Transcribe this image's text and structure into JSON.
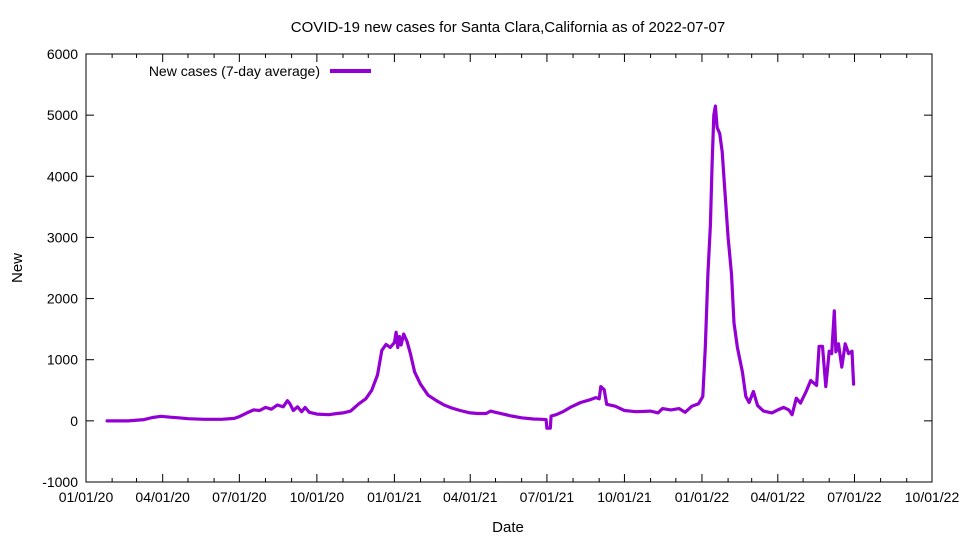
{
  "chart_data": {
    "type": "line",
    "title": "COVID-19 new cases for Santa Clara,California as of 2022-07-07",
    "xlabel": "Date",
    "ylabel": "New",
    "ylim": [
      -1000,
      6000
    ],
    "xlim": [
      "2020-01-01",
      "2022-10-01"
    ],
    "grid": false,
    "legend_position": "top-left",
    "x_ticks": [
      "01/01/20",
      "04/01/20",
      "07/01/20",
      "10/01/20",
      "01/01/21",
      "04/01/21",
      "07/01/21",
      "10/01/21",
      "01/01/22",
      "04/01/22",
      "07/01/22",
      "10/01/22"
    ],
    "y_ticks": [
      "-1000",
      "0",
      "1000",
      "2000",
      "3000",
      "4000",
      "5000",
      "6000"
    ],
    "series": [
      {
        "name": "New cases (7-day average)",
        "color": "#9400d3",
        "points": [
          [
            "2020-01-26",
            0
          ],
          [
            "2020-02-20",
            0
          ],
          [
            "2020-03-10",
            20
          ],
          [
            "2020-03-20",
            55
          ],
          [
            "2020-03-30",
            75
          ],
          [
            "2020-04-10",
            60
          ],
          [
            "2020-04-20",
            50
          ],
          [
            "2020-05-01",
            35
          ],
          [
            "2020-05-20",
            25
          ],
          [
            "2020-06-10",
            25
          ],
          [
            "2020-06-25",
            40
          ],
          [
            "2020-07-01",
            70
          ],
          [
            "2020-07-10",
            130
          ],
          [
            "2020-07-18",
            180
          ],
          [
            "2020-07-25",
            170
          ],
          [
            "2020-08-01",
            220
          ],
          [
            "2020-08-08",
            190
          ],
          [
            "2020-08-15",
            260
          ],
          [
            "2020-08-22",
            230
          ],
          [
            "2020-08-27",
            330
          ],
          [
            "2020-08-30",
            280
          ],
          [
            "2020-09-03",
            170
          ],
          [
            "2020-09-08",
            230
          ],
          [
            "2020-09-13",
            150
          ],
          [
            "2020-09-17",
            220
          ],
          [
            "2020-09-22",
            140
          ],
          [
            "2020-10-01",
            110
          ],
          [
            "2020-10-15",
            100
          ],
          [
            "2020-10-25",
            120
          ],
          [
            "2020-11-01",
            130
          ],
          [
            "2020-11-10",
            160
          ],
          [
            "2020-11-20",
            280
          ],
          [
            "2020-11-28",
            360
          ],
          [
            "2020-12-05",
            500
          ],
          [
            "2020-12-12",
            750
          ],
          [
            "2020-12-17",
            1150
          ],
          [
            "2020-12-22",
            1250
          ],
          [
            "2020-12-27",
            1200
          ],
          [
            "2021-01-01",
            1280
          ],
          [
            "2021-01-03",
            1450
          ],
          [
            "2021-01-05",
            1200
          ],
          [
            "2021-01-07",
            1380
          ],
          [
            "2021-01-09",
            1240
          ],
          [
            "2021-01-12",
            1420
          ],
          [
            "2021-01-16",
            1300
          ],
          [
            "2021-01-20",
            1100
          ],
          [
            "2021-01-25",
            800
          ],
          [
            "2021-02-01",
            600
          ],
          [
            "2021-02-10",
            420
          ],
          [
            "2021-02-20",
            330
          ],
          [
            "2021-03-01",
            260
          ],
          [
            "2021-03-10",
            210
          ],
          [
            "2021-03-20",
            170
          ],
          [
            "2021-04-01",
            130
          ],
          [
            "2021-04-10",
            120
          ],
          [
            "2021-04-20",
            120
          ],
          [
            "2021-04-25",
            160
          ],
          [
            "2021-05-01",
            140
          ],
          [
            "2021-05-10",
            110
          ],
          [
            "2021-05-20",
            80
          ],
          [
            "2021-06-01",
            50
          ],
          [
            "2021-06-15",
            30
          ],
          [
            "2021-06-25",
            25
          ],
          [
            "2021-06-30",
            20
          ],
          [
            "2021-07-01",
            -120
          ],
          [
            "2021-07-05",
            -120
          ],
          [
            "2021-07-06",
            80
          ],
          [
            "2021-07-12",
            100
          ],
          [
            "2021-07-20",
            150
          ],
          [
            "2021-07-30",
            230
          ],
          [
            "2021-08-10",
            300
          ],
          [
            "2021-08-20",
            340
          ],
          [
            "2021-08-28",
            380
          ],
          [
            "2021-09-01",
            360
          ],
          [
            "2021-09-03",
            560
          ],
          [
            "2021-09-07",
            510
          ],
          [
            "2021-09-10",
            270
          ],
          [
            "2021-09-20",
            240
          ],
          [
            "2021-10-01",
            170
          ],
          [
            "2021-10-15",
            150
          ],
          [
            "2021-11-01",
            160
          ],
          [
            "2021-11-10",
            130
          ],
          [
            "2021-11-15",
            200
          ],
          [
            "2021-11-25",
            180
          ],
          [
            "2021-12-05",
            200
          ],
          [
            "2021-12-12",
            140
          ],
          [
            "2021-12-20",
            240
          ],
          [
            "2021-12-28",
            280
          ],
          [
            "2022-01-02",
            400
          ],
          [
            "2022-01-05",
            1200
          ],
          [
            "2022-01-08",
            2400
          ],
          [
            "2022-01-11",
            3200
          ],
          [
            "2022-01-13",
            4200
          ],
          [
            "2022-01-15",
            5000
          ],
          [
            "2022-01-17",
            5150
          ],
          [
            "2022-01-19",
            4800
          ],
          [
            "2022-01-22",
            4700
          ],
          [
            "2022-01-25",
            4400
          ],
          [
            "2022-01-28",
            3800
          ],
          [
            "2022-02-01",
            3000
          ],
          [
            "2022-02-05",
            2400
          ],
          [
            "2022-02-08",
            1600
          ],
          [
            "2022-02-12",
            1200
          ],
          [
            "2022-02-18",
            800
          ],
          [
            "2022-02-22",
            400
          ],
          [
            "2022-02-26",
            300
          ],
          [
            "2022-03-03",
            480
          ],
          [
            "2022-03-08",
            250
          ],
          [
            "2022-03-15",
            160
          ],
          [
            "2022-03-25",
            130
          ],
          [
            "2022-04-01",
            180
          ],
          [
            "2022-04-08",
            220
          ],
          [
            "2022-04-14",
            180
          ],
          [
            "2022-04-18",
            100
          ],
          [
            "2022-04-23",
            370
          ],
          [
            "2022-04-28",
            290
          ],
          [
            "2022-05-05",
            490
          ],
          [
            "2022-05-10",
            660
          ],
          [
            "2022-05-17",
            580
          ],
          [
            "2022-05-20",
            1220
          ],
          [
            "2022-05-24",
            1220
          ],
          [
            "2022-05-28",
            560
          ],
          [
            "2022-06-01",
            1140
          ],
          [
            "2022-06-04",
            1100
          ],
          [
            "2022-06-07",
            1800
          ],
          [
            "2022-06-09",
            1130
          ],
          [
            "2022-06-12",
            1260
          ],
          [
            "2022-06-16",
            880
          ],
          [
            "2022-06-20",
            1260
          ],
          [
            "2022-06-24",
            1100
          ],
          [
            "2022-06-28",
            1140
          ],
          [
            "2022-06-30",
            600
          ]
        ]
      }
    ]
  }
}
